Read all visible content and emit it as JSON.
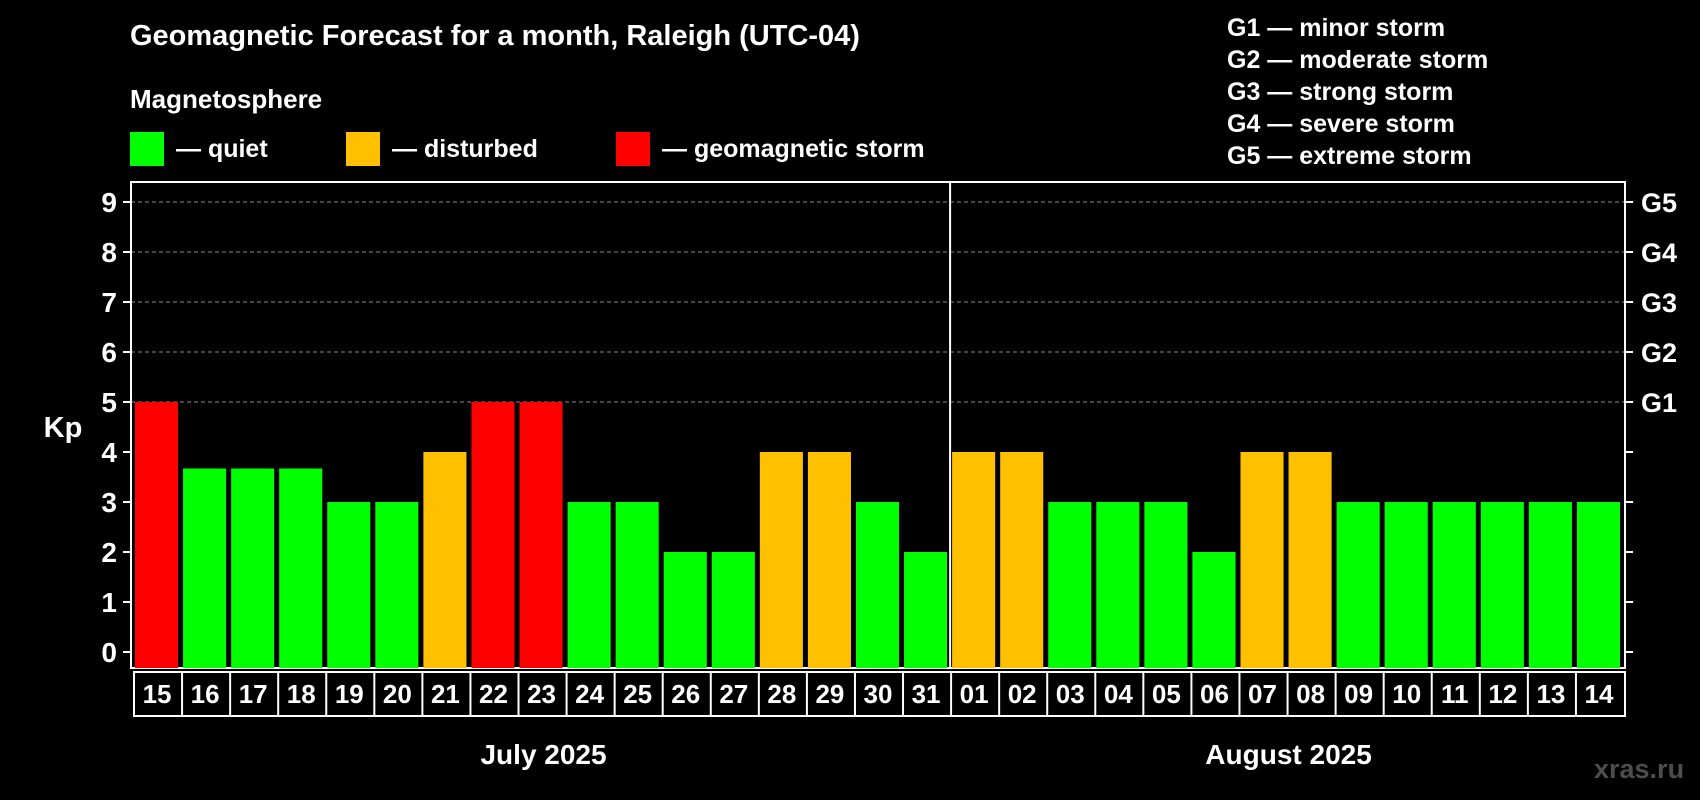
{
  "header": {
    "title": "Geomagnetic Forecast for a month, Raleigh (UTC-04)",
    "subtitle": "Magnetosphere"
  },
  "legend": [
    {
      "label": "— quiet",
      "color": "#00ff00"
    },
    {
      "label": "— disturbed",
      "color": "#ffc000"
    },
    {
      "label": "— geomagnetic storm",
      "color": "#ff0000"
    }
  ],
  "storm_levels": [
    "G1 — minor storm",
    "G2 — moderate storm",
    "G3 — strong storm",
    "G4 — severe storm",
    "G5 — extreme storm"
  ],
  "watermark": "xras.ru",
  "colors": {
    "quiet": "#00ff00",
    "disturbed": "#ffc000",
    "storm": "#ff0000"
  },
  "chart_data": {
    "type": "bar",
    "title": "Geomagnetic Forecast for a month, Raleigh (UTC-04)",
    "ylabel": "Kp",
    "ylim": [
      0,
      9
    ],
    "yticks": [
      "0",
      "1",
      "2",
      "3",
      "4",
      "5",
      "6",
      "7",
      "8",
      "9"
    ],
    "right_ticks": [
      {
        "value": 5,
        "label": "G1"
      },
      {
        "value": 6,
        "label": "G2"
      },
      {
        "value": 7,
        "label": "G3"
      },
      {
        "value": 8,
        "label": "G4"
      },
      {
        "value": 9,
        "label": "G5"
      }
    ],
    "grid": "dashed horizontal",
    "categories": [
      "15",
      "16",
      "17",
      "18",
      "19",
      "20",
      "21",
      "22",
      "23",
      "24",
      "25",
      "26",
      "27",
      "28",
      "29",
      "30",
      "31",
      "01",
      "02",
      "03",
      "04",
      "05",
      "06",
      "07",
      "08",
      "09",
      "10",
      "11",
      "12",
      "13",
      "14"
    ],
    "values": [
      5,
      3.67,
      3.67,
      3.67,
      3,
      3,
      4,
      5,
      5,
      3,
      3,
      2,
      2,
      4,
      4,
      3,
      2,
      4,
      4,
      3,
      3,
      3,
      2,
      4,
      4,
      3,
      3,
      3,
      3,
      3,
      3
    ],
    "levels": [
      "storm",
      "quiet",
      "quiet",
      "quiet",
      "quiet",
      "quiet",
      "disturbed",
      "storm",
      "storm",
      "quiet",
      "quiet",
      "quiet",
      "quiet",
      "disturbed",
      "disturbed",
      "quiet",
      "quiet",
      "disturbed",
      "disturbed",
      "quiet",
      "quiet",
      "quiet",
      "quiet",
      "disturbed",
      "disturbed",
      "quiet",
      "quiet",
      "quiet",
      "quiet",
      "quiet",
      "quiet"
    ],
    "months": [
      {
        "label": "July 2025",
        "start": 0,
        "count": 17
      },
      {
        "label": "August 2025",
        "start": 17,
        "count": 14
      }
    ]
  }
}
